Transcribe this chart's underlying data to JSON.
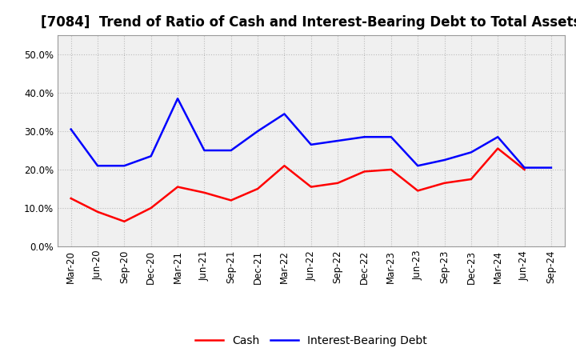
{
  "title": "[7084]  Trend of Ratio of Cash and Interest-Bearing Debt to Total Assets",
  "x_labels": [
    "Mar-20",
    "Jun-20",
    "Sep-20",
    "Dec-20",
    "Mar-21",
    "Jun-21",
    "Sep-21",
    "Dec-21",
    "Mar-22",
    "Jun-22",
    "Sep-22",
    "Dec-22",
    "Mar-23",
    "Jun-23",
    "Sep-23",
    "Dec-23",
    "Mar-24",
    "Jun-24",
    "Sep-24"
  ],
  "cash": [
    0.125,
    0.09,
    0.065,
    0.1,
    0.155,
    0.14,
    0.12,
    0.15,
    0.21,
    0.155,
    0.165,
    0.195,
    0.2,
    0.145,
    0.165,
    0.175,
    0.255,
    0.2,
    null
  ],
  "interest_bearing_debt": [
    0.305,
    0.21,
    0.21,
    0.235,
    0.385,
    0.25,
    0.25,
    0.3,
    0.345,
    0.265,
    0.275,
    0.285,
    0.285,
    0.21,
    0.225,
    0.245,
    0.285,
    0.205,
    0.205
  ],
  "cash_color": "#ff0000",
  "debt_color": "#0000ff",
  "ylim": [
    0.0,
    0.55
  ],
  "yticks": [
    0.0,
    0.1,
    0.2,
    0.3,
    0.4,
    0.5
  ],
  "background_color": "#ffffff",
  "plot_bg_color": "#f0f0f0",
  "grid_color": "#bbbbbb",
  "legend_cash": "Cash",
  "legend_debt": "Interest-Bearing Debt",
  "title_fontsize": 12,
  "axis_fontsize": 8.5,
  "legend_fontsize": 10
}
